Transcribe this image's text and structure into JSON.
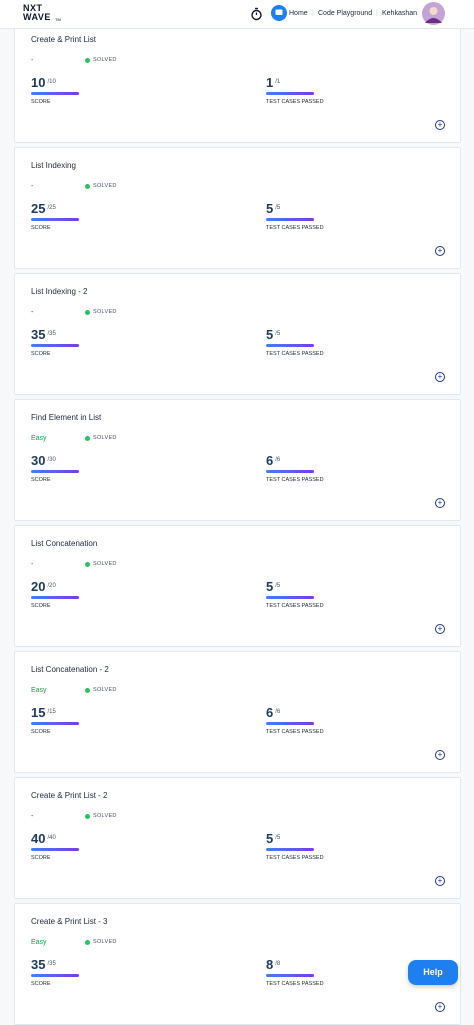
{
  "header": {
    "logo_top": "NXT",
    "logo_bottom": "WAVE",
    "logo_mark": "TM",
    "nav": [
      "Home",
      "Code Playground"
    ],
    "user": "Kehkashan"
  },
  "cards": [
    {
      "title": "Create & Print List",
      "difficulty": "-",
      "status": "SOLVED",
      "score": 10,
      "score_max": "/10",
      "score_label": "SCORE",
      "tests": 1,
      "tests_max": "/1",
      "tests_label": "TEST CASES PASSED"
    },
    {
      "title": "List Indexing",
      "difficulty": "-",
      "status": "SOLVED",
      "score": 25,
      "score_max": "/25",
      "score_label": "SCORE",
      "tests": 5,
      "tests_max": "/5",
      "tests_label": "TEST CASES PASSED"
    },
    {
      "title": "List Indexing - 2",
      "difficulty": "-",
      "status": "SOLVED",
      "score": 35,
      "score_max": "/35",
      "score_label": "SCORE",
      "tests": 5,
      "tests_max": "/5",
      "tests_label": "TEST CASES PASSED"
    },
    {
      "title": "Find Element in List",
      "difficulty": "Easy",
      "status": "SOLVED",
      "score": 30,
      "score_max": "/30",
      "score_label": "SCORE",
      "tests": 6,
      "tests_max": "/6",
      "tests_label": "TEST CASES PASSED"
    },
    {
      "title": "List Concatenation",
      "difficulty": "-",
      "status": "SOLVED",
      "score": 20,
      "score_max": "/20",
      "score_label": "SCORE",
      "tests": 5,
      "tests_max": "/5",
      "tests_label": "TEST CASES PASSED"
    },
    {
      "title": "List Concatenation - 2",
      "difficulty": "Easy",
      "status": "SOLVED",
      "score": 15,
      "score_max": "/15",
      "score_label": "SCORE",
      "tests": 6,
      "tests_max": "/6",
      "tests_label": "TEST CASES PASSED"
    },
    {
      "title": "Create & Print List - 2",
      "difficulty": "-",
      "status": "SOLVED",
      "score": 40,
      "score_max": "/40",
      "score_label": "SCORE",
      "tests": 5,
      "tests_max": "/5",
      "tests_label": "TEST CASES PASSED"
    },
    {
      "title": "Create & Print List - 3",
      "difficulty": "Easy",
      "status": "SOLVED",
      "score": 35,
      "score_max": "/35",
      "score_label": "SCORE",
      "tests": 8,
      "tests_max": "/8",
      "tests_label": "TEST CASES PASSED"
    }
  ],
  "help": "Help"
}
